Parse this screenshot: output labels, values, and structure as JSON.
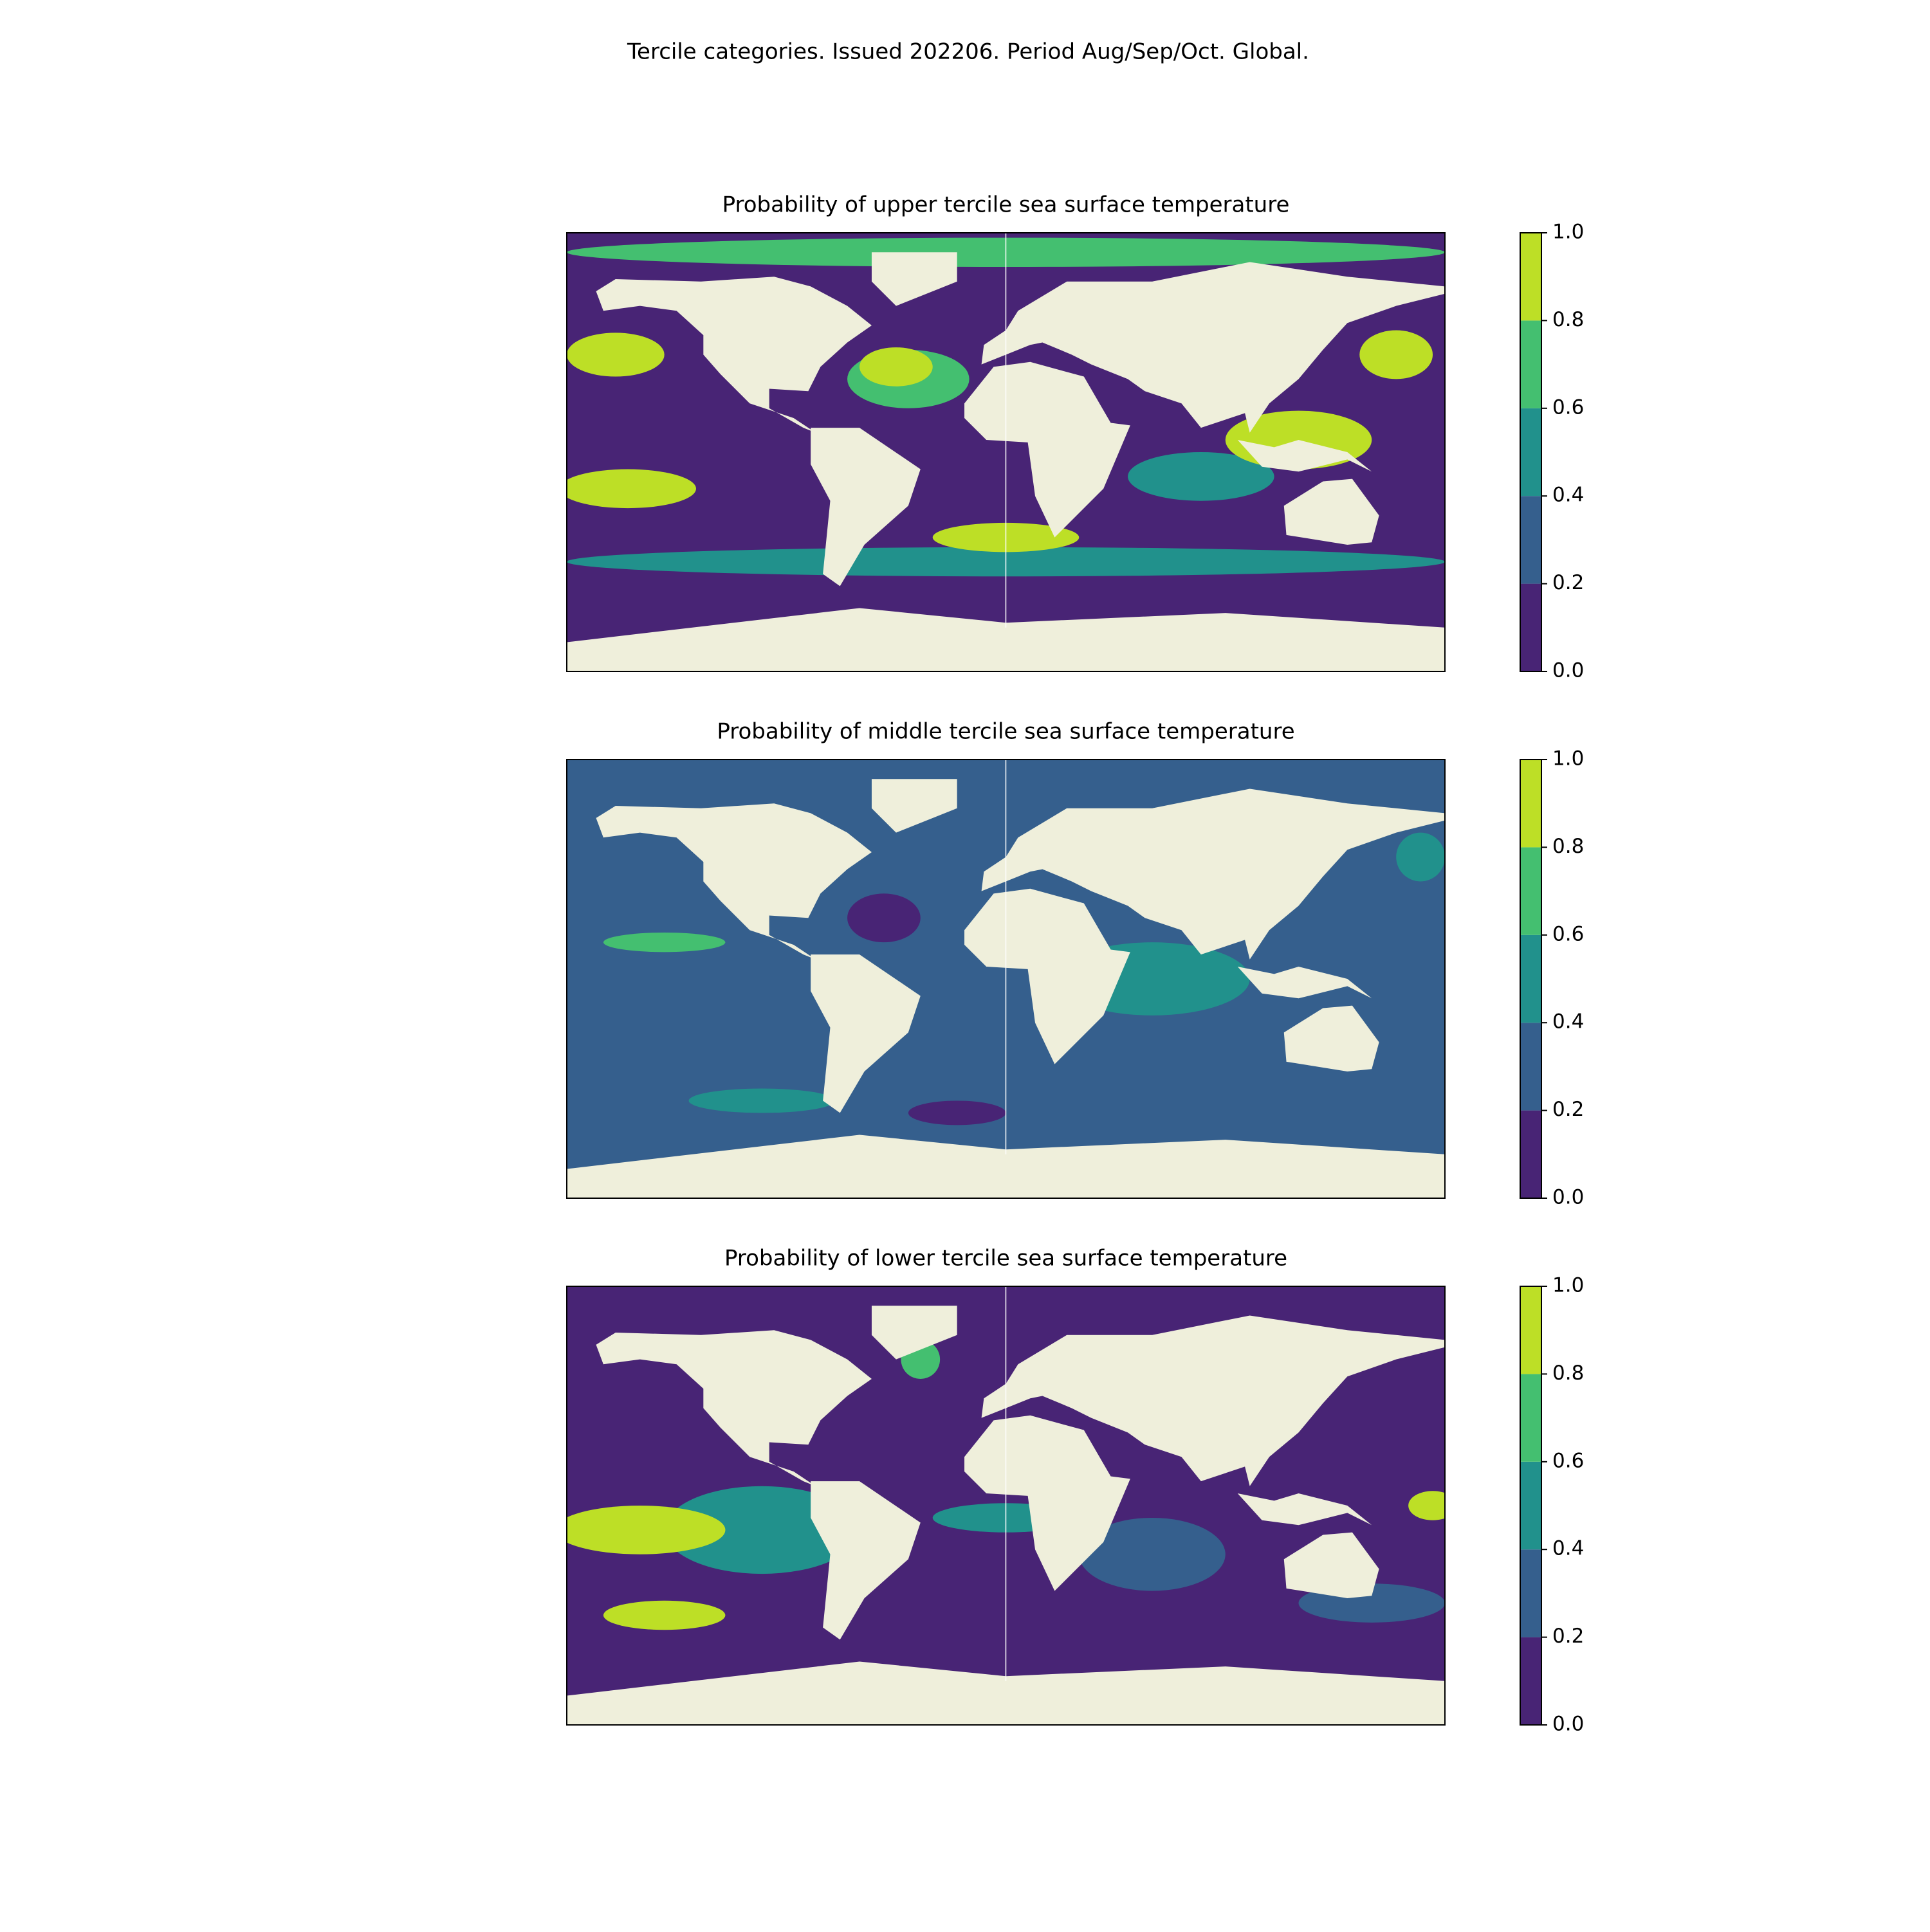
{
  "title": "Tercile categories. Issued 202206. Period Aug/Sep/Oct. Global.",
  "panels": [
    {
      "title": "Probability of upper tercile sea surface temperature"
    },
    {
      "title": "Probability of middle tercile sea surface temperature"
    },
    {
      "title": "Probability of lower tercile sea surface temperature"
    }
  ],
  "colorbar": {
    "colors": [
      "#482475",
      "#355f8d",
      "#21918c",
      "#44bf70",
      "#bddf26"
    ],
    "lim": [
      0,
      1
    ],
    "ticks": [
      {
        "value": 0,
        "label": "0.0"
      },
      {
        "value": 0.2,
        "label": "0.2"
      },
      {
        "value": 0.4,
        "label": "0.4"
      },
      {
        "value": 0.6,
        "label": "0.6"
      },
      {
        "value": 0.8,
        "label": "0.8"
      },
      {
        "value": 1,
        "label": "1.0"
      }
    ]
  },
  "land_color": "#efefdb"
}
